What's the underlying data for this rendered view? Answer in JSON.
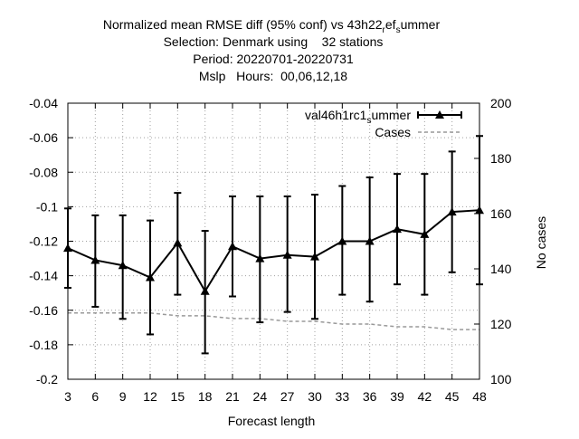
{
  "chart_data": {
    "type": "line",
    "title_lines": [
      "Normalized mean RMSE diff (95% conf) vs 43h22",
      "Selection: Denmark using    32 stations",
      "Period: 20220701-20220731",
      "Mslp   Hours:  00,06,12,18"
    ],
    "title_first_suffix": {
      "sub1": "r",
      "mid": "ef",
      "sub2": "s",
      "end": "ummer"
    },
    "xlabel": "Forecast length",
    "ylabel_right": "No cases",
    "x": [
      3,
      6,
      9,
      12,
      15,
      18,
      21,
      24,
      27,
      30,
      33,
      36,
      39,
      42,
      45,
      48
    ],
    "x_ticks": [
      "3",
      "6",
      "9",
      "12",
      "15",
      "18",
      "21",
      "24",
      "27",
      "30",
      "33",
      "36",
      "39",
      "42",
      "45",
      "48"
    ],
    "ylim": [
      -0.2,
      -0.04
    ],
    "y_ticks": [
      "-0.04",
      "-0.06",
      "-0.08",
      "-0.1",
      "-0.12",
      "-0.14",
      "-0.16",
      "-0.18",
      "-0.2"
    ],
    "y2lim": [
      100,
      200
    ],
    "y2_ticks": [
      "200",
      "180",
      "160",
      "140",
      "120",
      "100"
    ],
    "grid": true,
    "legend_position": "top-right",
    "series": [
      {
        "name_base": "val46h1rc1",
        "name_sub": "s",
        "name_end": "ummer",
        "axis": "left",
        "style": "line-errorbars-triangles",
        "color": "#000000",
        "values": [
          -0.124,
          -0.131,
          -0.134,
          -0.141,
          -0.121,
          -0.149,
          -0.123,
          -0.13,
          -0.128,
          -0.129,
          -0.12,
          -0.12,
          -0.113,
          -0.116,
          -0.103,
          -0.102
        ],
        "err_low": [
          -0.147,
          -0.158,
          -0.165,
          -0.174,
          -0.151,
          -0.185,
          -0.152,
          -0.167,
          -0.161,
          -0.165,
          -0.151,
          -0.155,
          -0.145,
          -0.151,
          -0.138,
          -0.145
        ],
        "err_high": [
          -0.101,
          -0.105,
          -0.105,
          -0.108,
          -0.092,
          -0.114,
          -0.094,
          -0.094,
          -0.094,
          -0.093,
          -0.088,
          -0.083,
          -0.081,
          -0.081,
          -0.068,
          -0.059
        ]
      },
      {
        "name": "Cases",
        "axis": "right",
        "style": "dashed",
        "color": "#999999",
        "values": [
          124,
          124,
          124,
          124,
          123,
          123,
          122,
          122,
          121,
          121,
          120,
          120,
          119,
          119,
          118,
          118
        ]
      }
    ]
  }
}
